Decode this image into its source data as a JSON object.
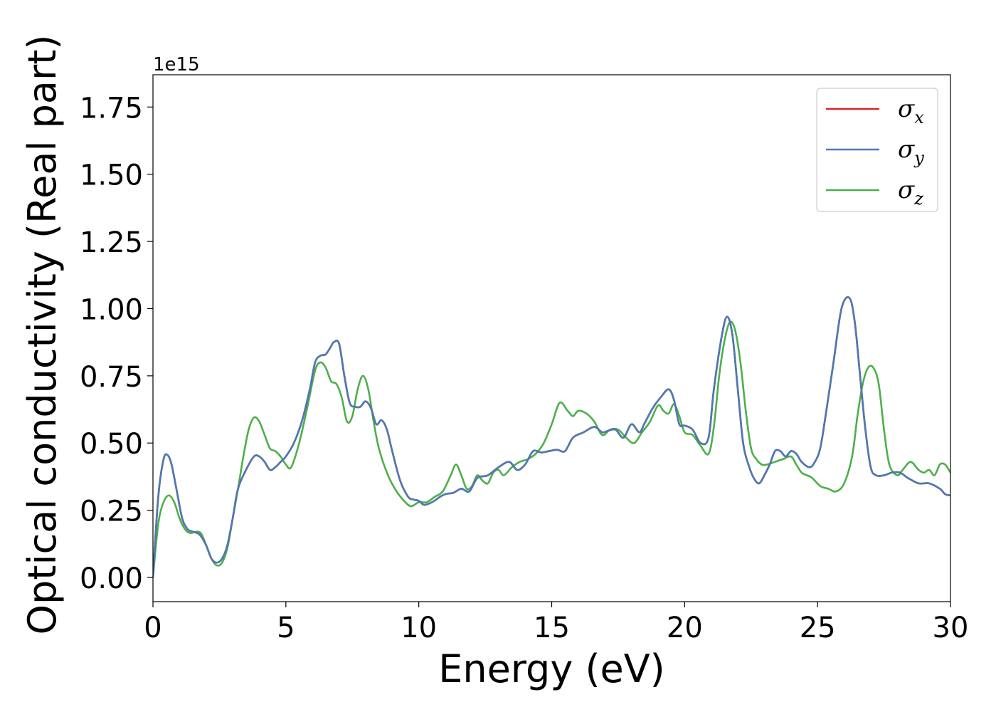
{
  "chart_data": {
    "type": "line",
    "title": "",
    "xlabel": "Energy (eV)",
    "ylabel": "Optical conductivity (Real part)",
    "y_offset_label": "1e15",
    "xlim": [
      0,
      30
    ],
    "ylim": [
      -0.09,
      1.87
    ],
    "x_ticks": [
      0,
      5,
      10,
      15,
      20,
      25,
      30
    ],
    "x_tick_labels": [
      "0",
      "5",
      "10",
      "15",
      "20",
      "25",
      "30"
    ],
    "y_ticks": [
      0.0,
      0.25,
      0.5,
      0.75,
      1.0,
      1.25,
      1.5,
      1.75
    ],
    "y_tick_labels": [
      "0.00",
      "0.25",
      "0.50",
      "0.75",
      "1.00",
      "1.25",
      "1.50",
      "1.75"
    ],
    "grid": false,
    "legend_position": "top-right",
    "series": [
      {
        "name": "σx",
        "symbol": "σ",
        "subscript": "x",
        "color": "#d62728",
        "x": [
          0,
          0.2,
          0.4,
          0.55,
          0.7,
          0.9,
          1.1,
          1.3,
          1.5,
          1.75,
          2.0,
          2.2,
          2.4,
          2.6,
          2.8,
          3.0,
          3.2,
          3.5,
          3.8,
          4.0,
          4.2,
          4.4,
          4.6,
          4.8,
          5.0,
          5.3,
          5.6,
          5.9,
          6.1,
          6.3,
          6.5,
          6.7,
          6.8,
          7.0,
          7.2,
          7.4,
          7.6,
          7.8,
          8.0,
          8.2,
          8.4,
          8.6,
          8.8,
          9.0,
          9.3,
          9.6,
          9.8,
          10.0,
          10.2,
          10.5,
          10.8,
          11.0,
          11.3,
          11.6,
          11.9,
          12.2,
          12.6,
          13.0,
          13.4,
          13.7,
          14.0,
          14.3,
          14.6,
          14.9,
          15.2,
          15.5,
          15.8,
          16.2,
          16.6,
          16.9,
          17.1,
          17.4,
          17.7,
          18.0,
          18.3,
          18.5,
          18.8,
          19.1,
          19.4,
          19.6,
          19.8,
          20.0,
          20.3,
          20.6,
          20.9,
          21.1,
          21.4,
          21.6,
          21.8,
          22.0,
          22.2,
          22.4,
          22.6,
          22.8,
          23.0,
          23.2,
          23.4,
          23.6,
          23.8,
          24.0,
          24.2,
          24.4,
          24.7,
          24.9,
          25.1,
          25.3,
          25.6,
          25.9,
          26.2,
          26.4,
          26.6,
          26.8,
          27.0,
          27.2,
          27.5,
          27.8,
          28.1,
          28.4,
          28.8,
          29.2,
          29.6,
          29.8,
          30.0
        ],
        "values": [
          0.0,
          0.3,
          0.44,
          0.455,
          0.42,
          0.32,
          0.22,
          0.18,
          0.17,
          0.16,
          0.12,
          0.07,
          0.055,
          0.07,
          0.12,
          0.22,
          0.33,
          0.4,
          0.45,
          0.45,
          0.43,
          0.4,
          0.41,
          0.43,
          0.45,
          0.5,
          0.58,
          0.7,
          0.8,
          0.825,
          0.83,
          0.86,
          0.875,
          0.87,
          0.75,
          0.65,
          0.635,
          0.635,
          0.655,
          0.63,
          0.57,
          0.585,
          0.55,
          0.47,
          0.36,
          0.3,
          0.29,
          0.285,
          0.27,
          0.28,
          0.3,
          0.31,
          0.315,
          0.33,
          0.32,
          0.37,
          0.38,
          0.41,
          0.43,
          0.4,
          0.42,
          0.47,
          0.465,
          0.47,
          0.475,
          0.47,
          0.52,
          0.54,
          0.56,
          0.54,
          0.545,
          0.55,
          0.52,
          0.57,
          0.54,
          0.575,
          0.63,
          0.67,
          0.7,
          0.66,
          0.57,
          0.565,
          0.55,
          0.5,
          0.52,
          0.7,
          0.9,
          0.97,
          0.9,
          0.7,
          0.5,
          0.42,
          0.37,
          0.35,
          0.38,
          0.42,
          0.47,
          0.47,
          0.45,
          0.47,
          0.46,
          0.43,
          0.41,
          0.43,
          0.48,
          0.6,
          0.8,
          1.0,
          1.04,
          0.95,
          0.75,
          0.55,
          0.41,
          0.38,
          0.38,
          0.39,
          0.39,
          0.37,
          0.35,
          0.35,
          0.33,
          0.31,
          0.305
        ]
      },
      {
        "name": "σy",
        "symbol": "σ",
        "subscript": "y",
        "color": "#4a7ab5",
        "x": [
          0,
          0.2,
          0.4,
          0.55,
          0.7,
          0.9,
          1.1,
          1.3,
          1.5,
          1.75,
          2.0,
          2.2,
          2.4,
          2.6,
          2.8,
          3.0,
          3.2,
          3.5,
          3.8,
          4.0,
          4.2,
          4.4,
          4.6,
          4.8,
          5.0,
          5.3,
          5.6,
          5.9,
          6.1,
          6.3,
          6.5,
          6.7,
          6.8,
          7.0,
          7.2,
          7.4,
          7.6,
          7.8,
          8.0,
          8.2,
          8.4,
          8.6,
          8.8,
          9.0,
          9.3,
          9.6,
          9.8,
          10.0,
          10.2,
          10.5,
          10.8,
          11.0,
          11.3,
          11.6,
          11.9,
          12.2,
          12.6,
          13.0,
          13.4,
          13.7,
          14.0,
          14.3,
          14.6,
          14.9,
          15.2,
          15.5,
          15.8,
          16.2,
          16.6,
          16.9,
          17.1,
          17.4,
          17.7,
          18.0,
          18.3,
          18.5,
          18.8,
          19.1,
          19.4,
          19.6,
          19.8,
          20.0,
          20.3,
          20.6,
          20.9,
          21.1,
          21.4,
          21.6,
          21.8,
          22.0,
          22.2,
          22.4,
          22.6,
          22.8,
          23.0,
          23.2,
          23.4,
          23.6,
          23.8,
          24.0,
          24.2,
          24.4,
          24.7,
          24.9,
          25.1,
          25.3,
          25.6,
          25.9,
          26.2,
          26.4,
          26.6,
          26.8,
          27.0,
          27.2,
          27.5,
          27.8,
          28.1,
          28.4,
          28.8,
          29.2,
          29.6,
          29.8,
          30.0
        ],
        "values": [
          0.0,
          0.3,
          0.44,
          0.455,
          0.42,
          0.32,
          0.22,
          0.18,
          0.17,
          0.16,
          0.12,
          0.07,
          0.055,
          0.07,
          0.12,
          0.22,
          0.33,
          0.4,
          0.45,
          0.45,
          0.43,
          0.4,
          0.41,
          0.43,
          0.45,
          0.5,
          0.58,
          0.7,
          0.8,
          0.825,
          0.83,
          0.86,
          0.875,
          0.87,
          0.75,
          0.65,
          0.635,
          0.635,
          0.655,
          0.63,
          0.57,
          0.585,
          0.55,
          0.47,
          0.36,
          0.3,
          0.29,
          0.285,
          0.27,
          0.28,
          0.3,
          0.31,
          0.315,
          0.33,
          0.32,
          0.37,
          0.38,
          0.41,
          0.43,
          0.4,
          0.42,
          0.47,
          0.465,
          0.47,
          0.475,
          0.47,
          0.52,
          0.54,
          0.56,
          0.54,
          0.545,
          0.55,
          0.52,
          0.57,
          0.54,
          0.575,
          0.63,
          0.67,
          0.7,
          0.66,
          0.57,
          0.565,
          0.55,
          0.5,
          0.52,
          0.7,
          0.9,
          0.97,
          0.9,
          0.7,
          0.5,
          0.42,
          0.37,
          0.35,
          0.38,
          0.42,
          0.47,
          0.47,
          0.45,
          0.47,
          0.46,
          0.43,
          0.41,
          0.43,
          0.48,
          0.6,
          0.8,
          1.0,
          1.04,
          0.95,
          0.75,
          0.55,
          0.41,
          0.38,
          0.38,
          0.39,
          0.39,
          0.37,
          0.35,
          0.35,
          0.33,
          0.31,
          0.305
        ]
      },
      {
        "name": "σz",
        "symbol": "σ",
        "subscript": "z",
        "color": "#4daf4a",
        "x": [
          0,
          0.2,
          0.4,
          0.6,
          0.8,
          1.0,
          1.2,
          1.4,
          1.6,
          1.8,
          2.0,
          2.2,
          2.4,
          2.6,
          2.8,
          3.0,
          3.2,
          3.4,
          3.6,
          3.8,
          4.0,
          4.2,
          4.4,
          4.6,
          4.8,
          5.0,
          5.2,
          5.5,
          5.8,
          6.1,
          6.3,
          6.5,
          6.7,
          6.9,
          7.1,
          7.3,
          7.5,
          7.7,
          7.9,
          8.1,
          8.3,
          8.5,
          8.8,
          9.1,
          9.4,
          9.7,
          10.0,
          10.3,
          10.6,
          10.9,
          11.2,
          11.4,
          11.6,
          11.8,
          12.0,
          12.2,
          12.4,
          12.6,
          12.8,
          13.0,
          13.2,
          13.5,
          13.8,
          14.1,
          14.4,
          14.7,
          15.0,
          15.3,
          15.6,
          15.8,
          16.0,
          16.3,
          16.6,
          16.9,
          17.2,
          17.5,
          17.8,
          18.1,
          18.4,
          18.7,
          19.0,
          19.2,
          19.4,
          19.6,
          19.8,
          20.0,
          20.3,
          20.6,
          20.9,
          21.1,
          21.3,
          21.5,
          21.7,
          21.9,
          22.1,
          22.3,
          22.5,
          22.7,
          22.9,
          23.1,
          23.4,
          23.7,
          24.0,
          24.2,
          24.4,
          24.6,
          24.8,
          25.1,
          25.4,
          25.7,
          26.0,
          26.3,
          26.5,
          26.7,
          26.9,
          27.1,
          27.3,
          27.5,
          27.7,
          28.0,
          28.2,
          28.5,
          28.8,
          29.0,
          29.2,
          29.4,
          29.6,
          29.8,
          30.0
        ],
        "values": [
          0.0,
          0.2,
          0.28,
          0.305,
          0.28,
          0.22,
          0.18,
          0.165,
          0.17,
          0.165,
          0.12,
          0.07,
          0.045,
          0.055,
          0.11,
          0.22,
          0.33,
          0.45,
          0.55,
          0.595,
          0.58,
          0.53,
          0.48,
          0.47,
          0.45,
          0.42,
          0.41,
          0.5,
          0.63,
          0.77,
          0.8,
          0.78,
          0.73,
          0.72,
          0.67,
          0.58,
          0.6,
          0.7,
          0.75,
          0.7,
          0.58,
          0.48,
          0.39,
          0.33,
          0.29,
          0.265,
          0.28,
          0.28,
          0.3,
          0.32,
          0.38,
          0.42,
          0.38,
          0.33,
          0.34,
          0.38,
          0.36,
          0.35,
          0.39,
          0.4,
          0.38,
          0.41,
          0.43,
          0.44,
          0.46,
          0.5,
          0.57,
          0.65,
          0.62,
          0.6,
          0.62,
          0.61,
          0.58,
          0.53,
          0.55,
          0.55,
          0.52,
          0.5,
          0.54,
          0.58,
          0.64,
          0.62,
          0.61,
          0.645,
          0.6,
          0.54,
          0.53,
          0.49,
          0.46,
          0.56,
          0.75,
          0.88,
          0.95,
          0.92,
          0.8,
          0.62,
          0.48,
          0.44,
          0.42,
          0.42,
          0.43,
          0.44,
          0.45,
          0.42,
          0.39,
          0.38,
          0.37,
          0.34,
          0.33,
          0.32,
          0.35,
          0.45,
          0.6,
          0.72,
          0.78,
          0.78,
          0.72,
          0.55,
          0.42,
          0.38,
          0.4,
          0.43,
          0.4,
          0.39,
          0.4,
          0.38,
          0.42,
          0.42,
          0.39
        ]
      }
    ]
  }
}
